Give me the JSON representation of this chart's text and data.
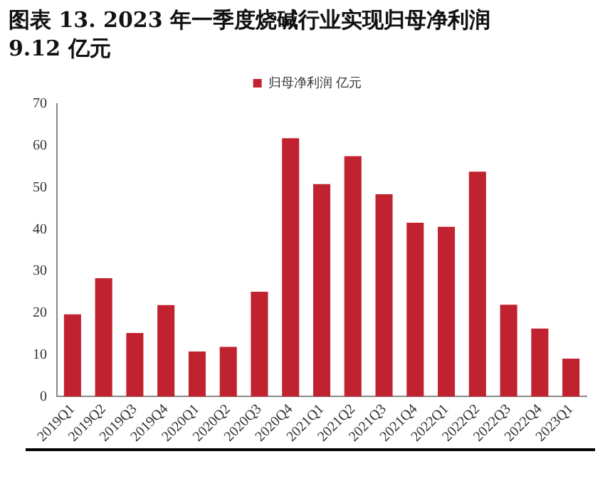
{
  "chart_data": {
    "type": "bar",
    "title": "图表 13. 2023 年一季度烧碱行业实现归母净利润 9.12 亿元",
    "categories": [
      "2019Q1",
      "2019Q2",
      "2019Q3",
      "2019Q4",
      "2020Q1",
      "2020Q2",
      "2020Q3",
      "2020Q4",
      "2021Q1",
      "2021Q2",
      "2021Q3",
      "2021Q4",
      "2022Q1",
      "2022Q2",
      "2022Q3",
      "2022Q4",
      "2023Q1"
    ],
    "series": [
      {
        "name": "归母净利润 亿元",
        "color": "#c0232f",
        "values": [
          19.7,
          28.3,
          15.2,
          21.9,
          10.8,
          11.9,
          25.1,
          61.8,
          50.8,
          57.5,
          48.4,
          41.6,
          40.6,
          53.8,
          22.0,
          16.3,
          9.1
        ]
      }
    ],
    "ylim": [
      0,
      70
    ],
    "yticks": [
      0,
      10,
      20,
      30,
      40,
      50,
      60,
      70
    ],
    "grid": false,
    "legend": "top"
  }
}
